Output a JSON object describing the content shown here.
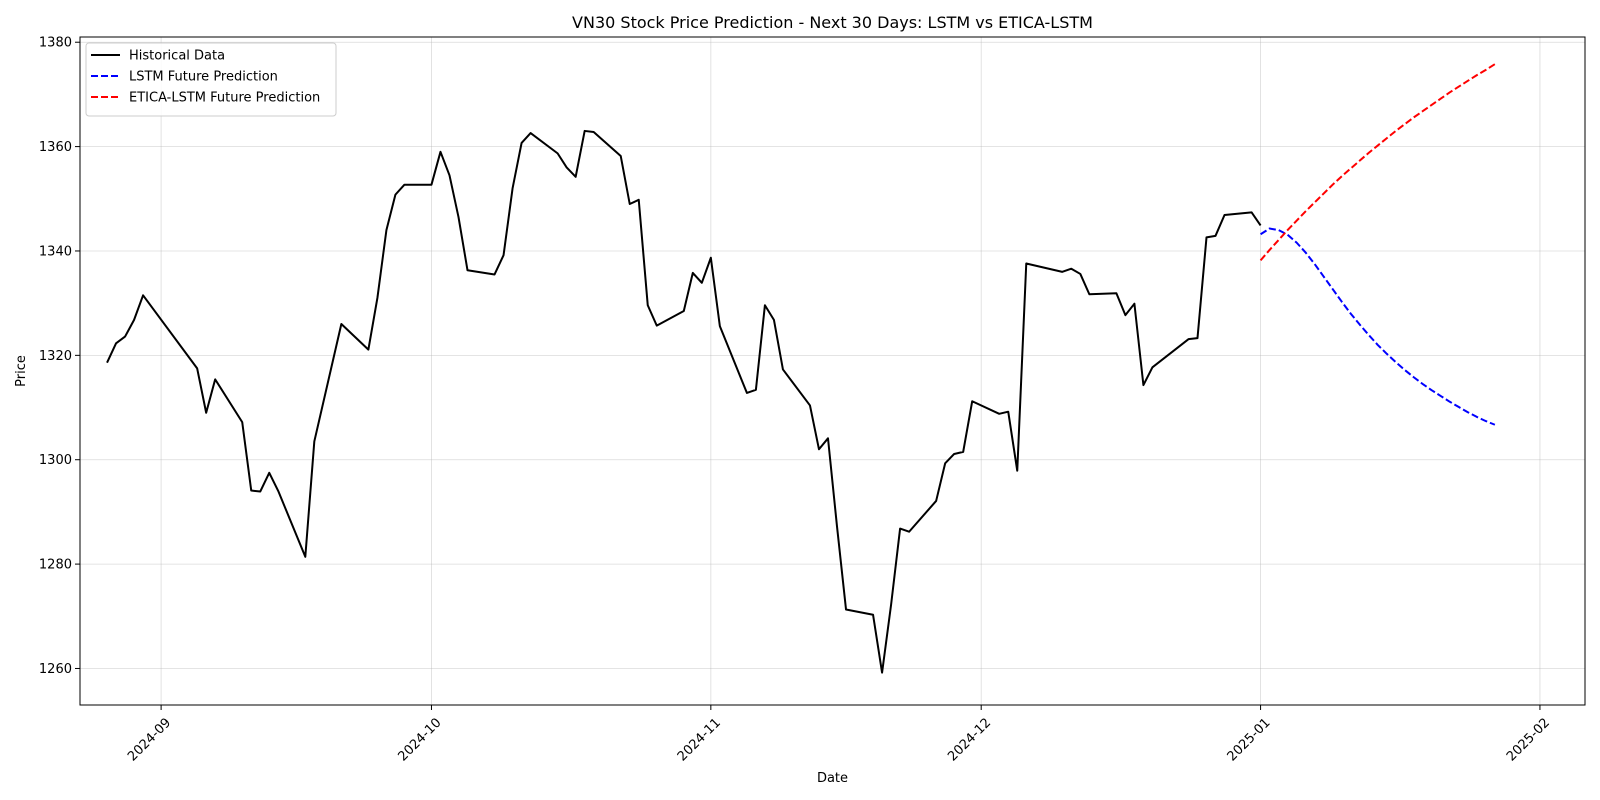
{
  "chart_data": {
    "type": "line",
    "title": "VN30 Stock Price Prediction - Next 30 Days: LSTM vs ETICA-LSTM",
    "xlabel": "Date",
    "ylabel": "Price",
    "xlim": [
      "2024-08-23",
      "2025-02-06"
    ],
    "ylim": [
      1253,
      1381
    ],
    "x_ticks": [
      {
        "date": "2024-09-01",
        "label": "2024-09"
      },
      {
        "date": "2024-10-01",
        "label": "2024-10"
      },
      {
        "date": "2024-11-01",
        "label": "2024-11"
      },
      {
        "date": "2024-12-01",
        "label": "2024-12"
      },
      {
        "date": "2025-01-01",
        "label": "2025-01"
      },
      {
        "date": "2025-02-01",
        "label": "2025-02"
      }
    ],
    "y_ticks": [
      1260,
      1280,
      1300,
      1320,
      1340,
      1360,
      1380
    ],
    "grid": true,
    "legend_position": "upper-left",
    "series": [
      {
        "name": "Historical Data",
        "color": "#000000",
        "dash": "solid",
        "points": [
          [
            "2024-08-26",
            1318.6
          ],
          [
            "2024-08-27",
            1322.3
          ],
          [
            "2024-08-28",
            1323.6
          ],
          [
            "2024-08-29",
            1326.8
          ],
          [
            "2024-08-30",
            1331.5
          ],
          [
            "2024-09-05",
            1317.5
          ],
          [
            "2024-09-06",
            1309.0
          ],
          [
            "2024-09-07",
            1315.4
          ],
          [
            "2024-09-10",
            1307.2
          ],
          [
            "2024-09-11",
            1294.1
          ],
          [
            "2024-09-12",
            1293.9
          ],
          [
            "2024-09-13",
            1297.5
          ],
          [
            "2024-09-14",
            1294.0
          ],
          [
            "2024-09-17",
            1281.4
          ],
          [
            "2024-09-18",
            1303.5
          ],
          [
            "2024-09-21",
            1326.0
          ],
          [
            "2024-09-24",
            1321.1
          ],
          [
            "2024-09-25",
            1331.0
          ],
          [
            "2024-09-26",
            1344.0
          ],
          [
            "2024-09-27",
            1350.8
          ],
          [
            "2024-09-28",
            1352.7
          ],
          [
            "2024-09-30",
            1352.7
          ],
          [
            "2024-10-01",
            1352.7
          ],
          [
            "2024-10-02",
            1359.0
          ],
          [
            "2024-10-03",
            1354.5
          ],
          [
            "2024-10-04",
            1346.5
          ],
          [
            "2024-10-05",
            1336.3
          ],
          [
            "2024-10-08",
            1335.5
          ],
          [
            "2024-10-09",
            1339.2
          ],
          [
            "2024-10-10",
            1352.0
          ],
          [
            "2024-10-11",
            1360.7
          ],
          [
            "2024-10-12",
            1362.6
          ],
          [
            "2024-10-15",
            1358.7
          ],
          [
            "2024-10-16",
            1356.0
          ],
          [
            "2024-10-17",
            1354.2
          ],
          [
            "2024-10-18",
            1363.0
          ],
          [
            "2024-10-19",
            1362.8
          ],
          [
            "2024-10-22",
            1358.2
          ],
          [
            "2024-10-23",
            1349.0
          ],
          [
            "2024-10-24",
            1349.8
          ],
          [
            "2024-10-25",
            1329.6
          ],
          [
            "2024-10-26",
            1325.7
          ],
          [
            "2024-10-29",
            1328.5
          ],
          [
            "2024-10-30",
            1335.8
          ],
          [
            "2024-10-31",
            1333.9
          ],
          [
            "2024-11-01",
            1338.7
          ],
          [
            "2024-11-02",
            1325.6
          ],
          [
            "2024-11-05",
            1312.8
          ],
          [
            "2024-11-06",
            1313.4
          ],
          [
            "2024-11-07",
            1329.6
          ],
          [
            "2024-11-08",
            1326.8
          ],
          [
            "2024-11-09",
            1317.3
          ],
          [
            "2024-11-12",
            1310.4
          ],
          [
            "2024-11-13",
            1302.0
          ],
          [
            "2024-11-14",
            1304.1
          ],
          [
            "2024-11-15",
            1287.2
          ],
          [
            "2024-11-16",
            1271.3
          ],
          [
            "2024-11-19",
            1270.3
          ],
          [
            "2024-11-20",
            1259.2
          ],
          [
            "2024-11-21",
            1272.2
          ],
          [
            "2024-11-22",
            1286.8
          ],
          [
            "2024-11-23",
            1286.2
          ],
          [
            "2024-11-26",
            1292.1
          ],
          [
            "2024-11-27",
            1299.3
          ],
          [
            "2024-11-28",
            1301.1
          ],
          [
            "2024-11-29",
            1301.5
          ],
          [
            "2024-11-30",
            1311.2
          ],
          [
            "2024-12-03",
            1308.8
          ],
          [
            "2024-12-04",
            1309.2
          ],
          [
            "2024-12-05",
            1297.9
          ],
          [
            "2024-12-06",
            1337.6
          ],
          [
            "2024-12-10",
            1336.0
          ],
          [
            "2024-12-11",
            1336.6
          ],
          [
            "2024-12-12",
            1335.6
          ],
          [
            "2024-12-13",
            1331.7
          ],
          [
            "2024-12-16",
            1331.9
          ],
          [
            "2024-12-17",
            1327.7
          ],
          [
            "2024-12-18",
            1329.9
          ],
          [
            "2024-12-19",
            1314.3
          ],
          [
            "2024-12-20",
            1317.7
          ],
          [
            "2024-12-24",
            1323.1
          ],
          [
            "2024-12-25",
            1323.3
          ],
          [
            "2024-12-26",
            1342.6
          ],
          [
            "2024-12-27",
            1342.9
          ],
          [
            "2024-12-28",
            1346.9
          ],
          [
            "2024-12-31",
            1347.4
          ],
          [
            "2025-01-01",
            1344.9
          ]
        ]
      },
      {
        "name": "LSTM Future Prediction",
        "color": "#0000ff",
        "dash": "dashed",
        "points": [
          [
            "2025-01-01",
            1343.2
          ],
          [
            "2025-01-02",
            1344.3
          ],
          [
            "2025-01-03",
            1344.0
          ],
          [
            "2025-01-04",
            1343.1
          ],
          [
            "2025-01-05",
            1341.6
          ],
          [
            "2025-01-06",
            1339.7
          ],
          [
            "2025-01-07",
            1337.5
          ],
          [
            "2025-01-08",
            1335.1
          ],
          [
            "2025-01-09",
            1332.7
          ],
          [
            "2025-01-10",
            1330.3
          ],
          [
            "2025-01-11",
            1328.0
          ],
          [
            "2025-01-12",
            1325.9
          ],
          [
            "2025-01-13",
            1323.9
          ],
          [
            "2025-01-14",
            1322.0
          ],
          [
            "2025-01-15",
            1320.3
          ],
          [
            "2025-01-16",
            1318.7
          ],
          [
            "2025-01-17",
            1317.2
          ],
          [
            "2025-01-18",
            1315.8
          ],
          [
            "2025-01-19",
            1314.5
          ],
          [
            "2025-01-20",
            1313.3
          ],
          [
            "2025-01-21",
            1312.2
          ],
          [
            "2025-01-22",
            1311.1
          ],
          [
            "2025-01-23",
            1310.1
          ],
          [
            "2025-01-24",
            1309.1
          ],
          [
            "2025-01-25",
            1308.2
          ],
          [
            "2025-01-26",
            1307.4
          ],
          [
            "2025-01-27",
            1306.7
          ]
        ]
      },
      {
        "name": "ETICA-LSTM Future Prediction",
        "color": "#ff0000",
        "dash": "dashed",
        "points": [
          [
            "2025-01-01",
            1338.2
          ],
          [
            "2025-01-02",
            1340.2
          ],
          [
            "2025-01-03",
            1342.1
          ],
          [
            "2025-01-04",
            1344.0
          ],
          [
            "2025-01-05",
            1345.8
          ],
          [
            "2025-01-06",
            1347.6
          ],
          [
            "2025-01-07",
            1349.3
          ],
          [
            "2025-01-08",
            1351.0
          ],
          [
            "2025-01-09",
            1352.7
          ],
          [
            "2025-01-10",
            1354.3
          ],
          [
            "2025-01-11",
            1355.8
          ],
          [
            "2025-01-12",
            1357.3
          ],
          [
            "2025-01-13",
            1358.8
          ],
          [
            "2025-01-14",
            1360.2
          ],
          [
            "2025-01-15",
            1361.6
          ],
          [
            "2025-01-16",
            1363.0
          ],
          [
            "2025-01-17",
            1364.3
          ],
          [
            "2025-01-18",
            1365.6
          ],
          [
            "2025-01-19",
            1366.8
          ],
          [
            "2025-01-20",
            1368.0
          ],
          [
            "2025-01-21",
            1369.2
          ],
          [
            "2025-01-22",
            1370.4
          ],
          [
            "2025-01-23",
            1371.5
          ],
          [
            "2025-01-24",
            1372.6
          ],
          [
            "2025-01-25",
            1373.7
          ],
          [
            "2025-01-26",
            1374.7
          ],
          [
            "2025-01-27",
            1375.8
          ]
        ]
      }
    ]
  }
}
